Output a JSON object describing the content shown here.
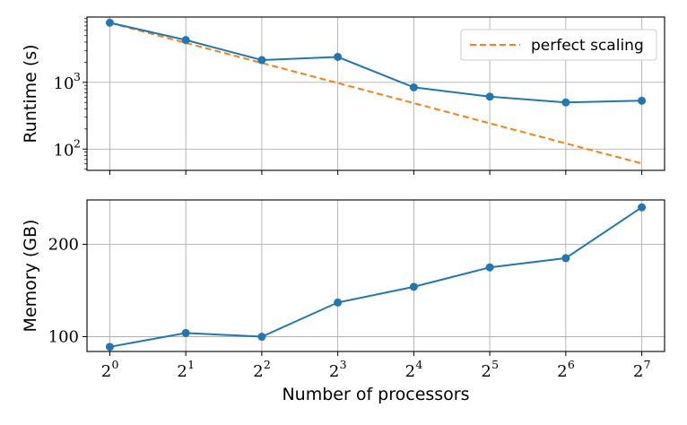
{
  "chart_data": [
    {
      "type": "line",
      "ylabel": "Runtime (s)",
      "yscale": "log",
      "ylim": [
        48,
        9500
      ],
      "ytick_labels": [
        {
          "base": "10",
          "exp": "3",
          "value": 1000
        },
        {
          "base": "10",
          "exp": "2",
          "value": 100
        }
      ],
      "x": [
        1,
        2,
        4,
        8,
        16,
        32,
        64,
        128
      ],
      "xscale": "log2",
      "grid": true,
      "legend": {
        "position": "top-right"
      },
      "series": [
        {
          "name": "",
          "color": "#1f77b4",
          "style": "solid-with-markers",
          "values": [
            7800,
            4300,
            2150,
            2400,
            840,
            610,
            500,
            530
          ]
        },
        {
          "name": "perfect scaling",
          "color": "#ff7f0e",
          "style": "dashed",
          "values": [
            7800,
            3900,
            1950,
            975,
            487.5,
            243.75,
            121.9,
            60.9
          ]
        }
      ]
    },
    {
      "type": "line",
      "ylabel": "Memory (GB)",
      "xlabel": "Number of processors",
      "ylim": [
        84,
        248
      ],
      "yticks": [
        100,
        200
      ],
      "ytick_labels": [
        "100",
        "200"
      ],
      "x": [
        1,
        2,
        4,
        8,
        16,
        32,
        64,
        128
      ],
      "xscale": "log2",
      "xtick_labels": [
        {
          "base": "2",
          "exp": "0"
        },
        {
          "base": "2",
          "exp": "1"
        },
        {
          "base": "2",
          "exp": "2"
        },
        {
          "base": "2",
          "exp": "3"
        },
        {
          "base": "2",
          "exp": "4"
        },
        {
          "base": "2",
          "exp": "5"
        },
        {
          "base": "2",
          "exp": "6"
        },
        {
          "base": "2",
          "exp": "7"
        }
      ],
      "grid": true,
      "series": [
        {
          "name": "",
          "color": "#1f77b4",
          "style": "solid-with-markers",
          "values": [
            89,
            104,
            100,
            137,
            154,
            175,
            185,
            240
          ]
        }
      ]
    }
  ]
}
